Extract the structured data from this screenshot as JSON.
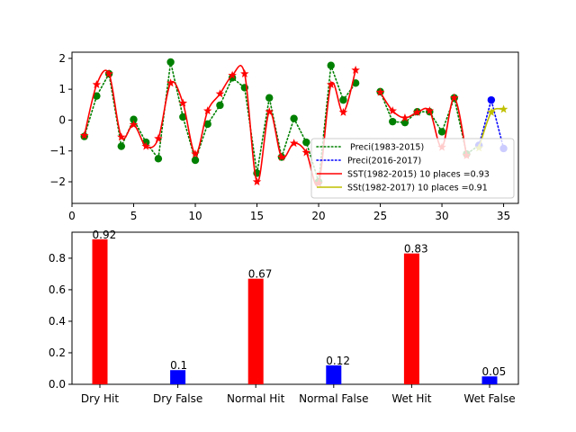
{
  "chart_data": [
    {
      "type": "line",
      "title": "",
      "xlabel": "",
      "ylabel": "",
      "xlim": [
        0,
        36.2
      ],
      "ylim": [
        -2.7,
        2.2
      ],
      "xticks": [
        0,
        5,
        10,
        15,
        20,
        25,
        30,
        35
      ],
      "yticks": [
        -2,
        -1,
        0,
        1,
        2
      ],
      "legend_position": "lower-right",
      "series": [
        {
          "name": " Preci(1983-2015)",
          "color": "#008000",
          "line_style": "dotted",
          "marker": "circle",
          "x": [
            1,
            2,
            3,
            4,
            5,
            6,
            7,
            8,
            9,
            10,
            11,
            12,
            13,
            14,
            15,
            16,
            17,
            18,
            19,
            20,
            21,
            22,
            23,
            24,
            25,
            26,
            27,
            28,
            29,
            30,
            31,
            32,
            33
          ],
          "y": [
            -0.53,
            0.78,
            1.5,
            -0.85,
            0.02,
            -0.72,
            -1.25,
            1.88,
            0.1,
            -1.3,
            -0.13,
            0.48,
            1.37,
            1.05,
            -1.72,
            0.72,
            -1.2,
            0.05,
            -0.72,
            -2.0,
            1.77,
            0.65,
            1.2,
            null,
            0.92,
            -0.05,
            -0.08,
            0.27,
            0.27,
            -0.38,
            0.72,
            -1.1,
            -0.82
          ]
        },
        {
          "name": "Preci(2016-2017)",
          "color": "#0000ff",
          "line_style": "dotted",
          "marker": "circle",
          "x": [
            33,
            34,
            35
          ],
          "y": [
            -0.82,
            0.65,
            -0.92
          ]
        },
        {
          "name": "SST(1982-2015) 10 places =0.93",
          "color": "#ff0000",
          "line_style": "solid",
          "marker": "star",
          "x": [
            1,
            2,
            3,
            4,
            5,
            6,
            7,
            8,
            9,
            10,
            11,
            12,
            13,
            14,
            15,
            16,
            17,
            18,
            19,
            20,
            21,
            22,
            23,
            24,
            25,
            26,
            27,
            28,
            29,
            30,
            31,
            32
          ],
          "y": [
            -0.5,
            1.15,
            1.5,
            -0.55,
            -0.15,
            -0.85,
            -0.6,
            1.2,
            0.55,
            -1.1,
            0.3,
            0.85,
            1.45,
            1.5,
            -2.0,
            0.27,
            -1.2,
            -0.75,
            -1.05,
            -2.05,
            1.15,
            0.25,
            1.62,
            null,
            0.9,
            0.3,
            0.07,
            0.25,
            0.3,
            -0.88,
            0.72,
            -1.15
          ]
        },
        {
          "name": "SSt(1982-2017) 10 places =0.91",
          "color": "#bfbf00",
          "line_style": "solid",
          "marker": "star",
          "x": [
            33,
            34,
            35
          ],
          "y": [
            -0.9,
            0.25,
            0.35
          ]
        }
      ]
    },
    {
      "type": "bar",
      "title": "",
      "xlabel": "",
      "ylabel": "",
      "ylim": [
        0,
        0.965
      ],
      "yticks": [
        0.0,
        0.2,
        0.4,
        0.6,
        0.8
      ],
      "ytick_labels": [
        "0.0",
        "0.2",
        "0.4",
        "0.6",
        "0.8"
      ],
      "categories": [
        "Dry Hit",
        "Dry False",
        "Normal Hit",
        "Normal False",
        "Wet Hit",
        "Wet False"
      ],
      "values": [
        0.92,
        0.09,
        0.67,
        0.12,
        0.83,
        0.05
      ],
      "data_labels": [
        "0.92",
        "0.1",
        "0.67",
        "0.12",
        "0.83",
        "0.05"
      ],
      "colors": [
        "#ff0000",
        "#0000ff",
        "#ff0000",
        "#0000ff",
        "#ff0000",
        "#0000ff"
      ]
    }
  ]
}
